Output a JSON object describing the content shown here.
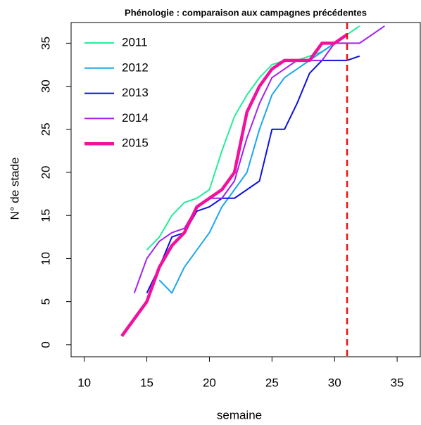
{
  "chart_data": {
    "type": "line",
    "title": "Phénologie : comparaison aux campagnes précédentes",
    "xlabel": "semaine",
    "ylabel": "N° de stade",
    "x": [
      13,
      14,
      15,
      16,
      17,
      18,
      19,
      20,
      21,
      22,
      23,
      24,
      25,
      26,
      27,
      28,
      29,
      30,
      31,
      32,
      33,
      34
    ],
    "series": [
      {
        "name": "2011",
        "color": "#22ee99",
        "width": 2,
        "values": [
          null,
          null,
          11,
          12.5,
          15,
          16.5,
          17,
          18,
          22.5,
          26.5,
          29,
          31,
          32.5,
          33,
          33,
          33.5,
          34,
          35,
          36,
          37,
          null,
          null
        ]
      },
      {
        "name": "2012",
        "color": "#1ca6ee",
        "width": 2,
        "values": [
          null,
          null,
          null,
          7.5,
          6,
          9,
          11,
          13,
          16,
          18,
          20,
          25,
          29,
          31,
          32,
          33,
          34,
          35,
          35,
          null,
          null,
          null
        ]
      },
      {
        "name": "2013",
        "color": "#0b12dd",
        "width": 2,
        "values": [
          null,
          null,
          6,
          9,
          12.5,
          13,
          15.5,
          16,
          17,
          17,
          18,
          19,
          25,
          25,
          28,
          31.5,
          33,
          33,
          33,
          33.5,
          null,
          null
        ]
      },
      {
        "name": "2014",
        "color": "#a321ee",
        "width": 2,
        "values": [
          null,
          6,
          10,
          12,
          13,
          13.5,
          16,
          17,
          17,
          19,
          24,
          28,
          31,
          32,
          33,
          33,
          33,
          35,
          35,
          35,
          36,
          37
        ]
      },
      {
        "name": "2015",
        "color": "#f0129c",
        "width": 4.5,
        "values": [
          1,
          3,
          5,
          9,
          11.5,
          13,
          16,
          17,
          18,
          20,
          27,
          30,
          32,
          33,
          33,
          33,
          35,
          35,
          36,
          null,
          null,
          null
        ]
      }
    ],
    "vline": {
      "x": 31,
      "color": "#ee1111"
    },
    "xlim": [
      8.95,
      36.85
    ],
    "ylim": [
      -1.4,
      37.4
    ],
    "xticks": [
      10,
      15,
      20,
      25,
      30,
      35
    ],
    "yticks": [
      0,
      5,
      10,
      15,
      20,
      25,
      30,
      35
    ],
    "legend": "top-left"
  }
}
